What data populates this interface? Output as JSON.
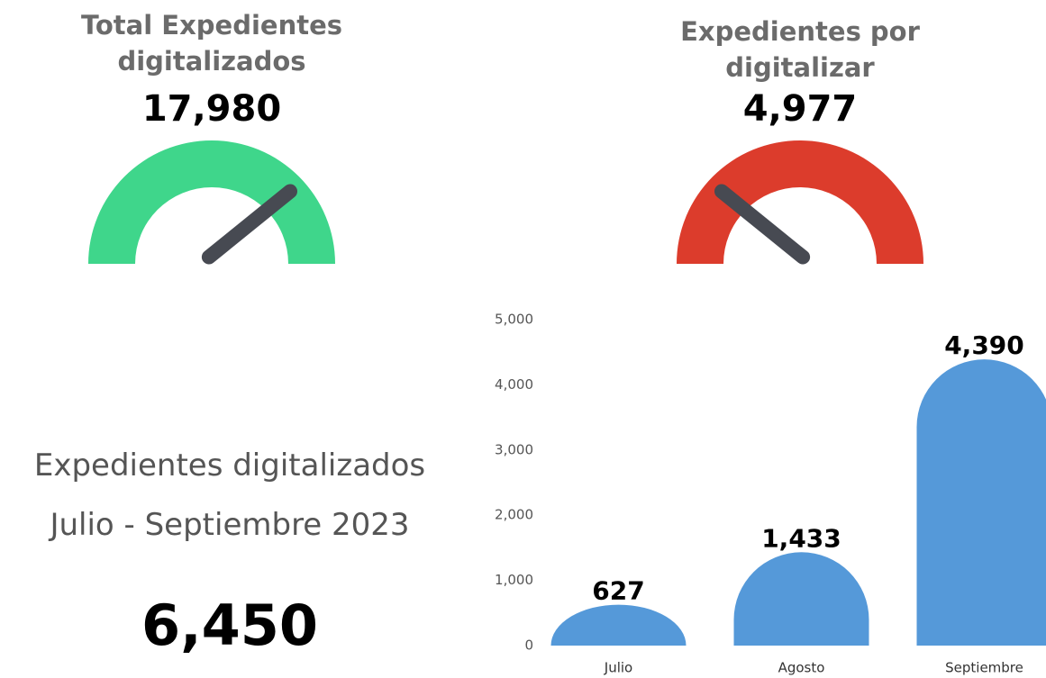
{
  "summary": {
    "title": "Expedientes digitalizados",
    "subtitle": "Julio - Septiembre 2023",
    "value": "6,450"
  },
  "chart_data": [
    {
      "type": "gauge",
      "title": "Total Expedientes digitalizados",
      "value": 17980,
      "value_label": "17,980",
      "ylim": [
        0,
        22957
      ],
      "color": "#3fd68b",
      "needle_color": "#474a52"
    },
    {
      "type": "gauge",
      "title": "Expedientes por digitalizar",
      "value": 4977,
      "value_label": "4,977",
      "ylim": [
        0,
        22957
      ],
      "color": "#dc3c2c",
      "needle_color": "#474a52"
    },
    {
      "type": "bar",
      "categories": [
        "Julio",
        "Agosto",
        "Septiembre"
      ],
      "values": [
        627,
        1433,
        4390
      ],
      "value_labels": [
        "627",
        "1,433",
        "4,390"
      ],
      "color": "#5599d9",
      "ylim": [
        0,
        5000
      ],
      "yticks": [
        0,
        {
          "value": 1000,
          "label": "1,000"
        },
        {
          "value": 2000,
          "label": "2,000"
        },
        {
          "value": 3000,
          "label": "3,000"
        },
        {
          "value": 4000,
          "label": "4,000"
        },
        {
          "value": 5000,
          "label": "5,000"
        }
      ]
    }
  ]
}
